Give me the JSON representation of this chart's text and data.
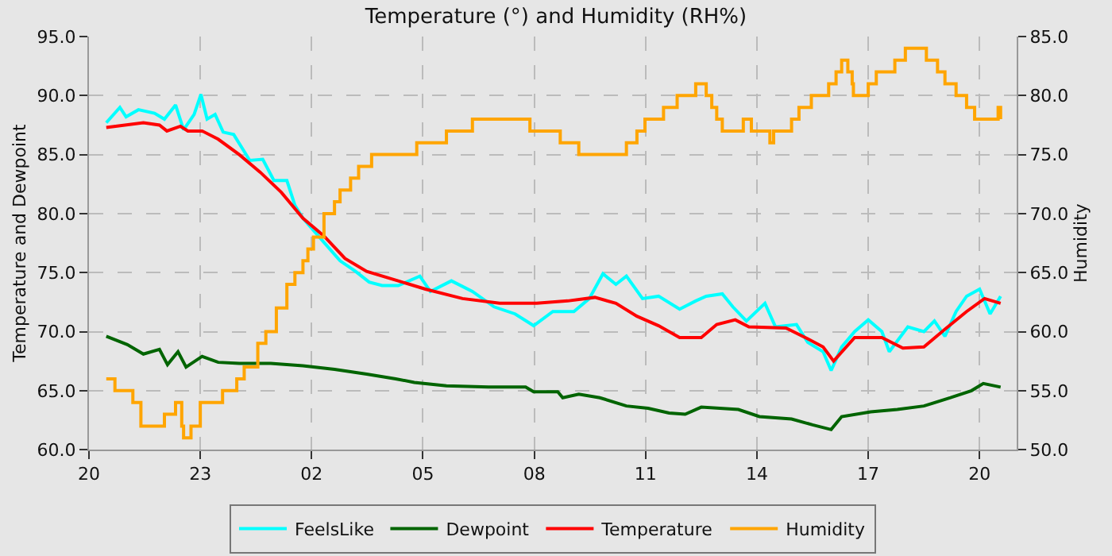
{
  "chart_data": {
    "type": "line",
    "title": "Temperature (°) and Humidity (RH%)",
    "ylabel": "Temperature and Dewpoint",
    "y2label": "Humidity",
    "xlim": [
      "--01-01T20:00",
      "--01-02T21:00"
    ],
    "xticks": [
      {
        "value": "--01-01T20:00",
        "label": "20"
      },
      {
        "value": "--01-01T23:00",
        "label": "23"
      },
      {
        "value": "--01-02T02:00",
        "label": "02"
      },
      {
        "value": "--01-02T05:00",
        "label": "05"
      },
      {
        "value": "--01-02T08:00",
        "label": "08"
      },
      {
        "value": "--01-02T11:00",
        "label": "11"
      },
      {
        "value": "--01-02T14:00",
        "label": "14"
      },
      {
        "value": "--01-02T17:00",
        "label": "17"
      },
      {
        "value": "--01-02T20:00",
        "label": "20"
      }
    ],
    "ylim": [
      60,
      95
    ],
    "yticks": [
      {
        "value": 60,
        "label": "60.0"
      },
      {
        "value": 65,
        "label": "65.0"
      },
      {
        "value": 70,
        "label": "70.0"
      },
      {
        "value": 75,
        "label": "75.0"
      },
      {
        "value": 80,
        "label": "80.0"
      },
      {
        "value": 85,
        "label": "85.0"
      },
      {
        "value": 90,
        "label": "90.0"
      },
      {
        "value": 95,
        "label": "95.0"
      }
    ],
    "y2lim": [
      50,
      85
    ],
    "y2ticks": [
      {
        "value": 50,
        "label": "50.0"
      },
      {
        "value": 55,
        "label": "55.0"
      },
      {
        "value": 60,
        "label": "60.0"
      },
      {
        "value": 65,
        "label": "65.0"
      },
      {
        "value": 70,
        "label": "70.0"
      },
      {
        "value": 75,
        "label": "75.0"
      },
      {
        "value": 80,
        "label": "80.0"
      },
      {
        "value": 85,
        "label": "85.0"
      }
    ],
    "grid": true,
    "legend": "bottom",
    "marker": "none",
    "line_style": "solid",
    "series": [
      {
        "name": "FeelsLike",
        "color": "#00ffff",
        "x": [
          "--01-01T20:28",
          "--01-01T20:50",
          "--01-01T21:00",
          "--01-01T21:20",
          "--01-01T21:46",
          "--01-01T22:02",
          "--01-01T22:20",
          "--01-01T22:33",
          "--01-01T22:50",
          "--01-01T23:01",
          "--01-01T23:11",
          "--01-01T23:24",
          "--01-01T23:37",
          "--01-01T23:54",
          "--01-02T00:20",
          "--01-02T00:41",
          "--01-02T00:59",
          "--01-02T01:20",
          "--01-02T01:33",
          "--01-02T01:46",
          "--01-02T02:11",
          "--01-02T02:46",
          "--01-02T03:11",
          "--01-02T03:33",
          "--01-02T03:54",
          "--01-02T04:20",
          "--01-02T04:55",
          "--01-02T05:12",
          "--01-02T05:46",
          "--01-02T06:20",
          "--01-02T06:55",
          "--01-02T07:29",
          "--01-02T07:59",
          "--01-02T08:30",
          "--01-02T09:04",
          "--01-02T09:29",
          "--01-02T09:51",
          "--01-02T10:12",
          "--01-02T10:29",
          "--01-02T10:55",
          "--01-02T11:21",
          "--01-02T11:55",
          "--01-02T12:21",
          "--01-02T12:38",
          "--01-02T13:04",
          "--01-02T13:21",
          "--01-02T13:43",
          "--01-02T14:13",
          "--01-02T14:30",
          "--01-02T15:04",
          "--01-02T15:22",
          "--01-02T15:47",
          "--01-02T16:00",
          "--01-02T16:17",
          "--01-02T16:38",
          "--01-02T17:00",
          "--01-02T17:22",
          "--01-02T17:34",
          "--01-02T18:04",
          "--01-02T18:30",
          "--01-02T18:47",
          "--01-02T19:04",
          "--01-02T19:22",
          "--01-02T19:39",
          "--01-02T20:00",
          "--01-02T20:17",
          "--01-02T20:34"
        ],
        "values": [
          87.7,
          89.0,
          88.2,
          88.8,
          88.5,
          88.0,
          89.2,
          87.1,
          88.4,
          90.1,
          88.0,
          88.4,
          86.9,
          86.7,
          84.5,
          84.6,
          82.8,
          82.8,
          80.7,
          79.6,
          78.1,
          76.0,
          75.1,
          74.2,
          73.9,
          73.9,
          74.7,
          73.4,
          74.3,
          73.4,
          72.1,
          71.5,
          70.5,
          71.7,
          71.7,
          72.8,
          74.9,
          74.0,
          74.7,
          72.8,
          73.0,
          71.9,
          72.6,
          73.0,
          73.2,
          72.1,
          70.9,
          72.4,
          70.4,
          70.6,
          69.1,
          68.3,
          66.7,
          68.7,
          70.0,
          71.0,
          70.0,
          68.3,
          70.4,
          70.0,
          70.9,
          69.6,
          71.7,
          73.0,
          73.6,
          71.5,
          73.0
        ]
      },
      {
        "name": "Dewpoint",
        "color": "#006400",
        "x": [
          "--01-01T20:28",
          "--01-01T21:02",
          "--01-01T21:28",
          "--01-01T21:54",
          "--01-01T22:07",
          "--01-01T22:24",
          "--01-01T22:37",
          "--01-01T23:03",
          "--01-01T23:29",
          "--01-02T00:03",
          "--01-02T00:54",
          "--01-02T01:46",
          "--01-02T02:37",
          "--01-02T03:29",
          "--01-02T04:16",
          "--01-02T04:46",
          "--01-02T05:38",
          "--01-02T06:46",
          "--01-02T07:46",
          "--01-02T07:59",
          "--01-02T08:38",
          "--01-02T08:46",
          "--01-02T09:12",
          "--01-02T09:46",
          "--01-02T10:29",
          "--01-02T11:04",
          "--01-02T11:38",
          "--01-02T12:04",
          "--01-02T12:30",
          "--01-02T13:30",
          "--01-02T14:04",
          "--01-02T14:56",
          "--01-02T15:30",
          "--01-02T16:00",
          "--01-02T16:17",
          "--01-02T17:04",
          "--01-02T17:47",
          "--01-02T18:30",
          "--01-02T19:13",
          "--01-02T19:47",
          "--01-02T20:06",
          "--01-02T20:34"
        ],
        "values": [
          69.6,
          68.9,
          68.1,
          68.5,
          67.2,
          68.3,
          67.0,
          67.9,
          67.4,
          67.3,
          67.3,
          67.1,
          66.8,
          66.4,
          66.0,
          65.7,
          65.4,
          65.3,
          65.3,
          64.9,
          64.9,
          64.4,
          64.7,
          64.4,
          63.7,
          63.5,
          63.1,
          63.0,
          63.6,
          63.4,
          62.8,
          62.6,
          62.1,
          61.7,
          62.8,
          63.2,
          63.4,
          63.7,
          64.4,
          65.0,
          65.6,
          65.3
        ]
      },
      {
        "name": "Temperature",
        "color": "#ff0000",
        "x": [
          "--01-01T20:28",
          "--01-01T21:28",
          "--01-01T21:54",
          "--01-01T22:06",
          "--01-01T22:28",
          "--01-01T22:40",
          "--01-01T23:03",
          "--01-01T23:29",
          "--01-02T00:03",
          "--01-02T00:37",
          "--01-02T01:11",
          "--01-02T01:46",
          "--01-02T02:20",
          "--01-02T02:54",
          "--01-02T03:29",
          "--01-02T04:20",
          "--01-02T05:04",
          "--01-02T06:04",
          "--01-02T07:04",
          "--01-02T08:04",
          "--01-02T08:54",
          "--01-02T09:38",
          "--01-02T10:12",
          "--01-02T10:46",
          "--01-02T11:21",
          "--01-02T11:55",
          "--01-02T12:30",
          "--01-02T12:55",
          "--01-02T13:25",
          "--01-02T13:47",
          "--01-02T14:47",
          "--01-02T15:22",
          "--01-02T15:47",
          "--01-02T16:04",
          "--01-02T16:38",
          "--01-02T17:22",
          "--01-02T17:56",
          "--01-02T18:30",
          "--01-02T19:04",
          "--01-02T19:39",
          "--01-02T20:08",
          "--01-02T20:34"
        ],
        "values": [
          87.3,
          87.7,
          87.5,
          87.0,
          87.4,
          87.0,
          87.0,
          86.3,
          85.0,
          83.5,
          81.8,
          79.6,
          78.1,
          76.2,
          75.1,
          74.3,
          73.6,
          72.8,
          72.4,
          72.4,
          72.6,
          72.9,
          72.4,
          71.3,
          70.5,
          69.5,
          69.5,
          70.6,
          71.0,
          70.4,
          70.3,
          69.4,
          68.7,
          67.5,
          69.5,
          69.5,
          68.6,
          68.7,
          70.2,
          71.7,
          72.8,
          72.4
        ]
      },
      {
        "name": "Humidity",
        "color": "#ffa500",
        "type": "step",
        "axis": "y2",
        "x": [
          "--01-01T20:28",
          "--01-01T20:42",
          "--01-01T21:11",
          "--01-01T21:24",
          "--01-01T22:02",
          "--01-01T22:20",
          "--01-01T22:30",
          "--01-01T22:33",
          "--01-01T22:45",
          "--01-01T23:00",
          "--01-01T23:36",
          "--01-01T23:59",
          "--01-02T00:11",
          "--01-02T00:33",
          "--01-02T00:46",
          "--01-02T01:03",
          "--01-02T01:20",
          "--01-02T01:33",
          "--01-02T01:46",
          "--01-02T01:54",
          "--01-02T02:03",
          "--01-02T02:20",
          "--01-02T02:37",
          "--01-02T02:46",
          "--01-02T03:03",
          "--01-02T03:16",
          "--01-02T03:37",
          "--01-02T04:50",
          "--01-02T05:38",
          "--01-02T06:20",
          "--01-02T07:53",
          "--01-02T08:42",
          "--01-02T09:12",
          "--01-02T10:29",
          "--01-02T10:46",
          "--01-02T10:59",
          "--01-02T11:29",
          "--01-02T11:51",
          "--01-02T12:21",
          "--01-02T12:38",
          "--01-02T12:47",
          "--01-02T12:55",
          "--01-02T13:04",
          "--01-02T13:38",
          "--01-02T13:51",
          "--01-02T14:21",
          "--01-02T14:27",
          "--01-02T14:56",
          "--01-02T15:08",
          "--01-02T15:28",
          "--01-02T15:56",
          "--01-02T16:08",
          "--01-02T16:17",
          "--01-02T16:27",
          "--01-02T16:34",
          "--01-02T16:36",
          "--01-02T17:00",
          "--01-02T17:13",
          "--01-02T17:43",
          "--01-02T18:00",
          "--01-02T18:34",
          "--01-02T18:52",
          "--01-02T19:04",
          "--01-02T19:22",
          "--01-02T19:39",
          "--01-02T19:52",
          "--01-02T20:30",
          "--01-02T20:34"
        ],
        "values": [
          56,
          55,
          54,
          52,
          53,
          54,
          52,
          51,
          52,
          54,
          55,
          56,
          57,
          59,
          60,
          62,
          64,
          65,
          66,
          67,
          68,
          70,
          71,
          72,
          73,
          74,
          75,
          76,
          77,
          78,
          77,
          76,
          75,
          76,
          77,
          78,
          79,
          80,
          81,
          80,
          79,
          78,
          77,
          78,
          77,
          76,
          77,
          78,
          79,
          80,
          81,
          82,
          83,
          82,
          81,
          80,
          81,
          82,
          83,
          84,
          83,
          82,
          81,
          80,
          79,
          78,
          79,
          78
        ]
      }
    ]
  }
}
